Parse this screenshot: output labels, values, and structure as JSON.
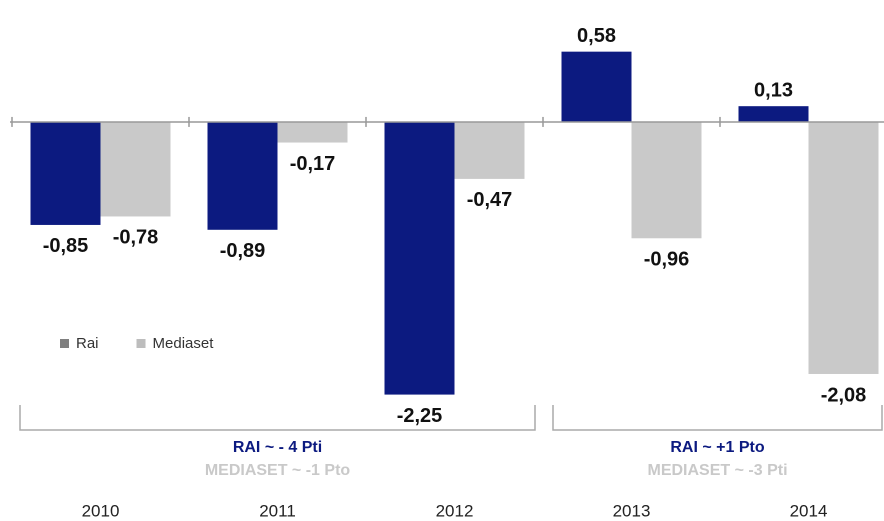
{
  "chart_data": {
    "type": "bar",
    "categories": [
      "2010",
      "2011",
      "2012",
      "2013",
      "2014"
    ],
    "series": [
      {
        "name": "Rai",
        "color": "#0c1a80",
        "legend_color": "#7f7f7f",
        "values": [
          -0.85,
          -0.89,
          -2.25,
          0.58,
          0.13
        ],
        "value_labels": [
          "-0,85",
          "-0,89",
          "-2,25",
          "0,58",
          "0,13"
        ]
      },
      {
        "name": "Mediaset",
        "color": "#c9c9c9",
        "legend_color": "#bdbdbd",
        "values": [
          -0.78,
          -0.17,
          -0.47,
          -0.96,
          -2.08
        ],
        "value_labels": [
          "-0,78",
          "-0,17",
          "-0,47",
          "-0,96",
          "-2,08"
        ]
      }
    ],
    "ylim": [
      -2.6,
      0.8
    ],
    "annotations": [
      {
        "from": "2010",
        "to": "2012",
        "lines": [
          {
            "text": "RAI ~ - 4 Pti",
            "color": "#0c1a80"
          },
          {
            "text": "MEDIASET ~ -1 Pto",
            "color": "#c9c9c9"
          }
        ]
      },
      {
        "from": "2013",
        "to": "2014",
        "lines": [
          {
            "text": "RAI ~ +1 Pto",
            "color": "#0c1a80"
          },
          {
            "text": "MEDIASET ~ -3 Pti",
            "color": "#c9c9c9"
          }
        ]
      }
    ]
  }
}
